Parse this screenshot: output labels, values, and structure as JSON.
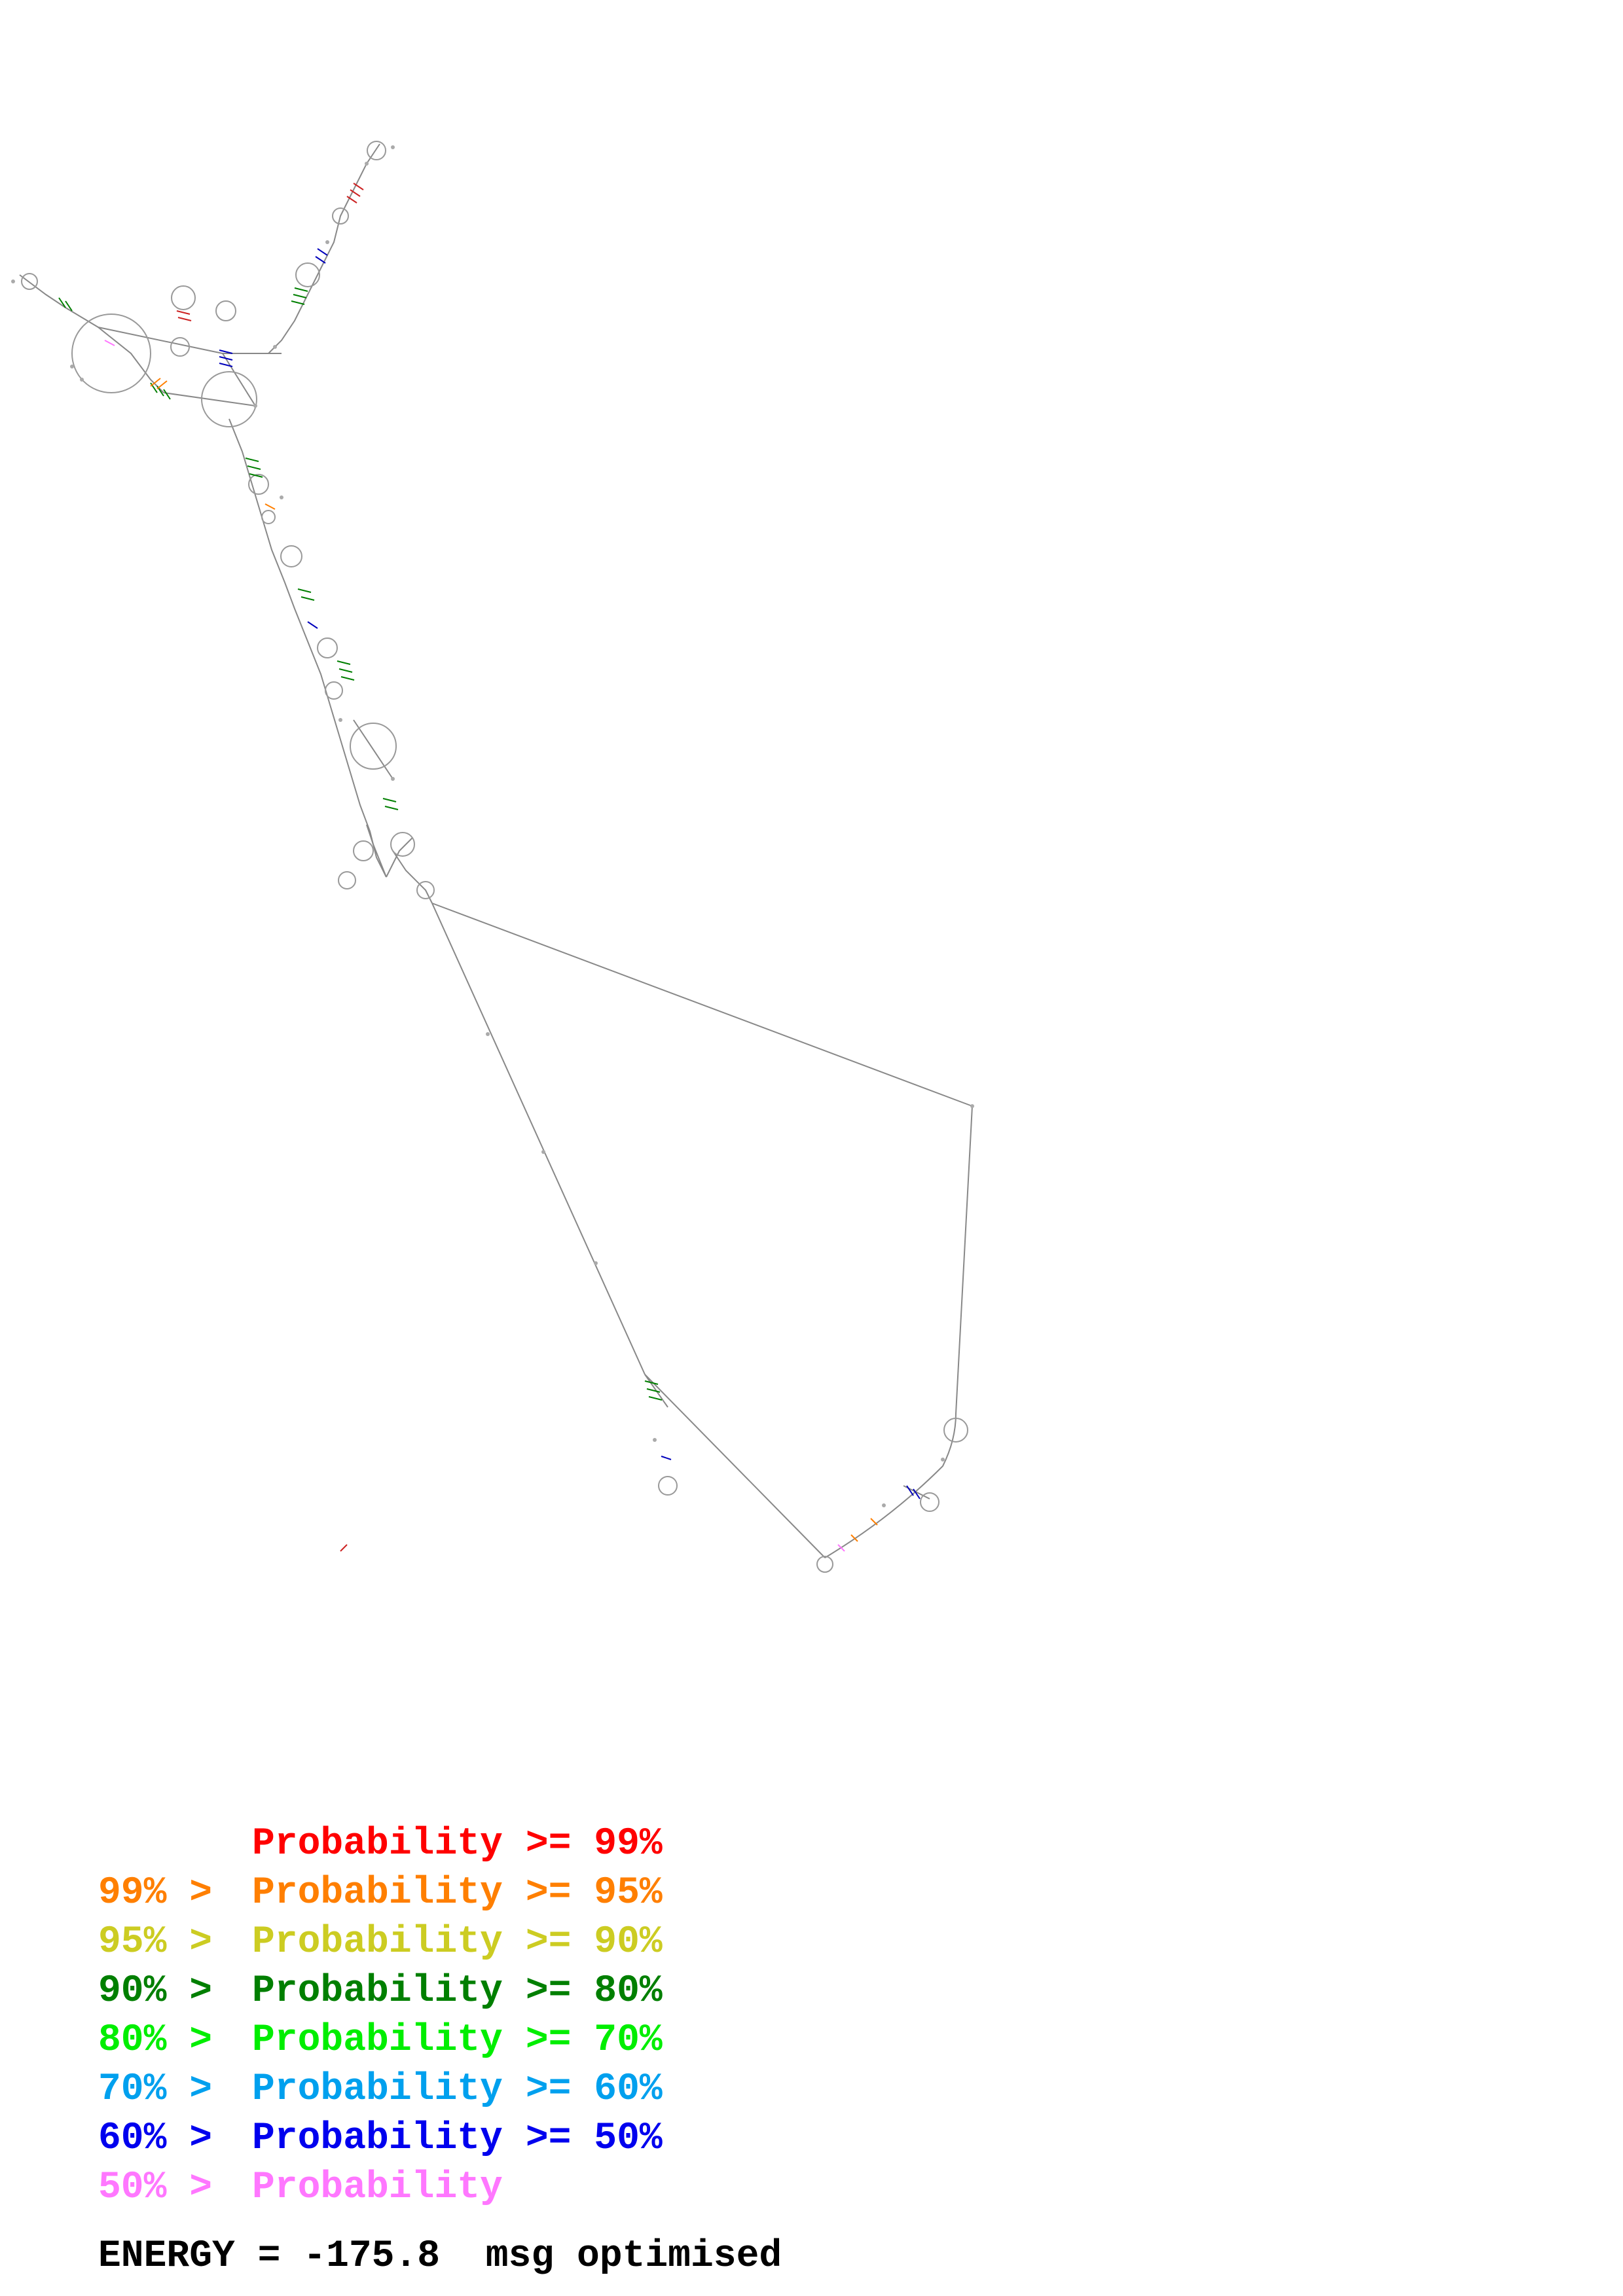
{
  "legend": [
    {
      "prefix": "",
      "label": "Probability",
      "suffix": ">= 99%",
      "color": "#ff0000"
    },
    {
      "prefix": "99% >",
      "label": "Probability",
      "suffix": ">= 95%",
      "color": "#ff7f00"
    },
    {
      "prefix": "95% >",
      "label": "Probability",
      "suffix": ">= 90%",
      "color": "#cccc22"
    },
    {
      "prefix": "90% >",
      "label": "Probability",
      "suffix": ">= 80%",
      "color": "#007f00"
    },
    {
      "prefix": "80% >",
      "label": "Probability",
      "suffix": ">= 70%",
      "color": "#00ee00"
    },
    {
      "prefix": "70% >",
      "label": "Probability",
      "suffix": ">= 60%",
      "color": "#00a0ee"
    },
    {
      "prefix": "60% >",
      "label": "Probability",
      "suffix": ">= 50%",
      "color": "#0000ee"
    },
    {
      "prefix": "50% >",
      "label": "Probability",
      "suffix": "",
      "color": "#ff77ff"
    }
  ],
  "footer": {
    "energy_label": "ENERGY =",
    "energy_value": "-175.8",
    "method": "msg optimised"
  },
  "colors": {
    "backbone": "#888888",
    "pair_colors": [
      "#ff0000",
      "#ff7f00",
      "#cccc22",
      "#007f00",
      "#00ee00",
      "#00a0ee",
      "#0000ee",
      "#ff77ff"
    ]
  }
}
